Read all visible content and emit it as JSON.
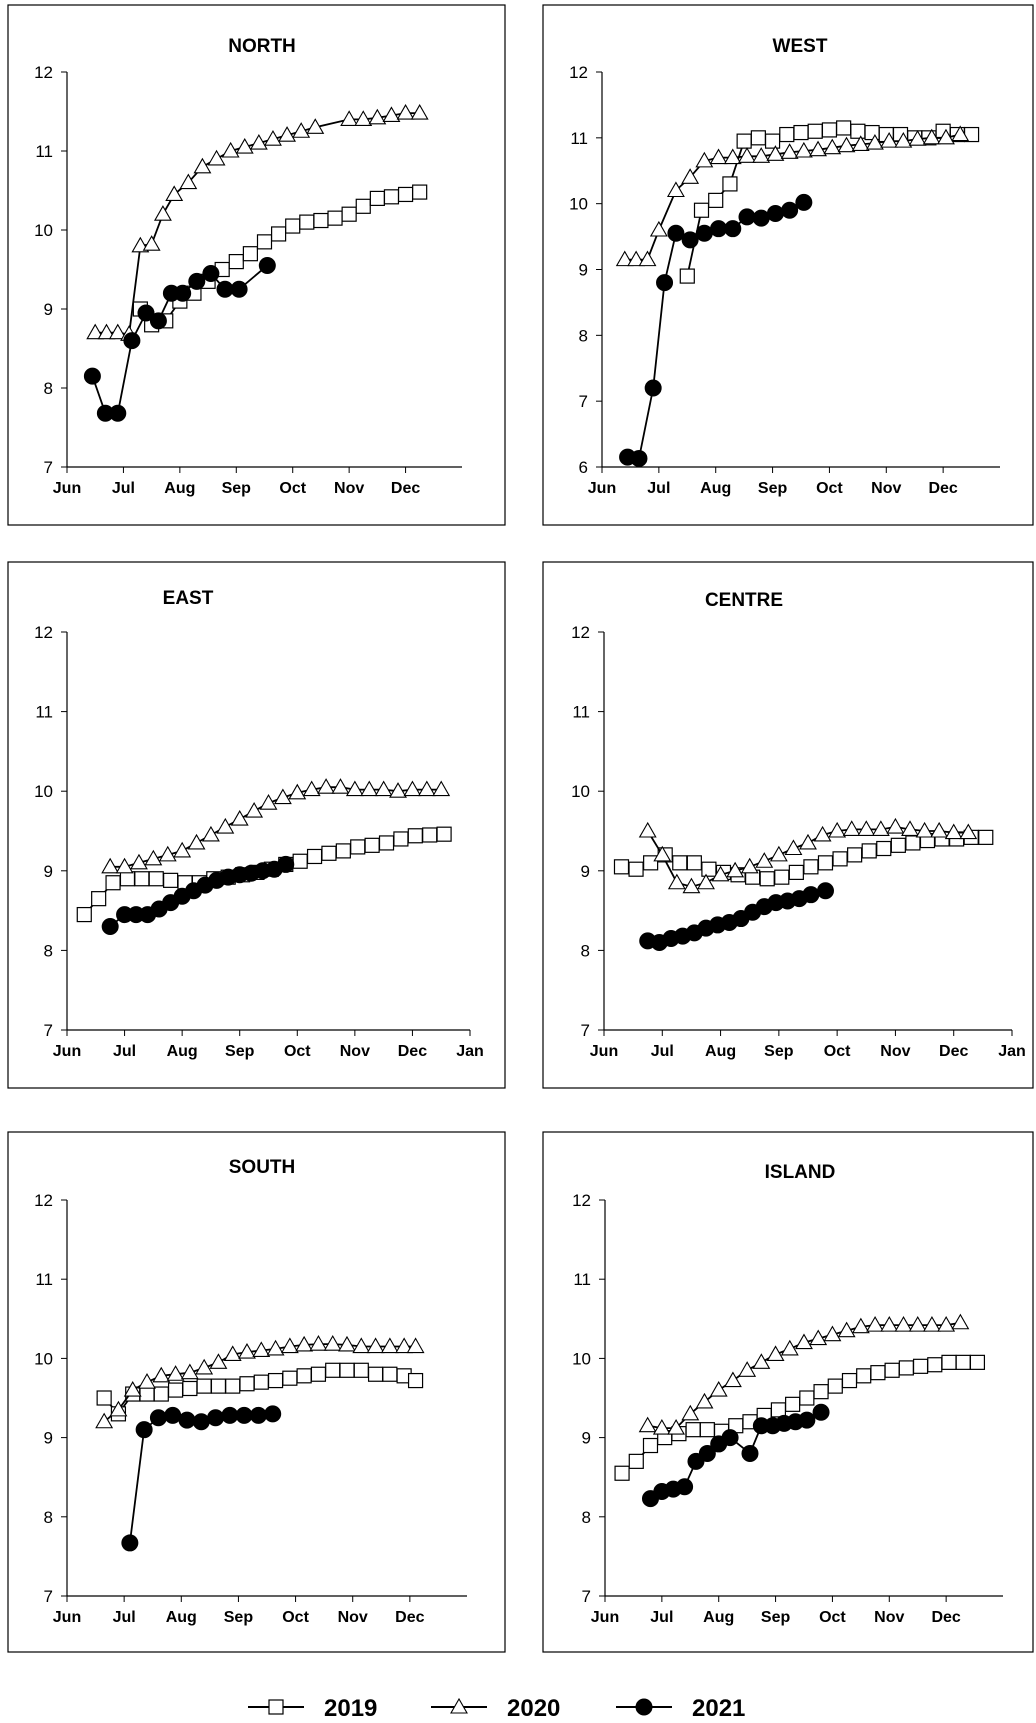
{
  "legend": {
    "entries": [
      {
        "label": "2019",
        "marker": "square-open"
      },
      {
        "label": "2020",
        "marker": "triangle-open"
      },
      {
        "label": "2021",
        "marker": "circle-filled"
      }
    ]
  },
  "chart_data": [
    {
      "type": "line",
      "title": "NORTH",
      "xticks": [
        "Jun",
        "Jul",
        "Aug",
        "Sep",
        "Oct",
        "Nov",
        "Dec"
      ],
      "xlim": [
        0,
        7
      ],
      "ylim": [
        7,
        12
      ],
      "yticks": [
        7,
        8,
        9,
        10,
        11,
        12
      ],
      "series": [
        {
          "name": "2019",
          "marker": "square-open",
          "x": [
            1.3,
            1.5,
            1.75,
            2,
            2.25,
            2.5,
            2.75,
            3,
            3.25,
            3.5,
            3.75,
            4,
            4.25,
            4.5,
            4.75,
            5,
            5.25,
            5.5,
            5.75,
            6,
            6.25
          ],
          "y": [
            9.0,
            8.8,
            8.85,
            9.1,
            9.2,
            9.35,
            9.5,
            9.6,
            9.7,
            9.85,
            9.95,
            10.05,
            10.1,
            10.12,
            10.15,
            10.2,
            10.3,
            10.4,
            10.42,
            10.45,
            10.48
          ]
        },
        {
          "name": "2020",
          "marker": "triangle-open",
          "x": [
            0.5,
            0.7,
            0.9,
            1.1,
            1.3,
            1.5,
            1.7,
            1.9,
            2.15,
            2.4,
            2.65,
            2.9,
            3.15,
            3.4,
            3.65,
            3.9,
            4.15,
            4.4,
            5.0,
            5.25,
            5.5,
            5.75,
            6.0,
            6.25
          ],
          "y": [
            8.7,
            8.7,
            8.7,
            8.68,
            9.8,
            9.82,
            10.2,
            10.45,
            10.6,
            10.8,
            10.9,
            11.0,
            11.05,
            11.1,
            11.15,
            11.2,
            11.25,
            11.3,
            11.4,
            11.4,
            11.42,
            11.45,
            11.48,
            11.48
          ]
        },
        {
          "name": "2021",
          "marker": "circle-filled",
          "x": [
            0.45,
            0.68,
            0.9,
            1.15,
            1.4,
            1.62,
            1.85,
            2.05,
            2.3,
            2.55,
            2.8,
            3.05,
            3.55
          ],
          "y": [
            8.15,
            7.68,
            7.68,
            8.6,
            8.95,
            8.85,
            9.2,
            9.2,
            9.35,
            9.45,
            9.25,
            9.25,
            9.55
          ]
        }
      ]
    },
    {
      "type": "line",
      "title": "WEST",
      "xticks": [
        "Jun",
        "Jul",
        "Aug",
        "Sep",
        "Oct",
        "Nov",
        "Dec"
      ],
      "xlim": [
        0,
        7
      ],
      "ylim": [
        6,
        12
      ],
      "yticks": [
        6,
        7,
        8,
        9,
        10,
        11,
        12
      ],
      "series": [
        {
          "name": "2019",
          "marker": "square-open",
          "x": [
            1.5,
            1.75,
            2,
            2.25,
            2.5,
            2.75,
            3,
            3.25,
            3.5,
            3.75,
            4,
            4.25,
            4.5,
            4.75,
            5,
            5.25,
            5.5,
            5.75,
            6,
            6.25,
            6.5
          ],
          "y": [
            8.9,
            9.9,
            10.05,
            10.3,
            10.95,
            11.0,
            10.95,
            11.05,
            11.08,
            11.1,
            11.12,
            11.15,
            11.1,
            11.08,
            11.05,
            11.05,
            11.0,
            11.0,
            11.1,
            11.05,
            11.05
          ]
        },
        {
          "name": "2020",
          "marker": "triangle-open",
          "x": [
            0.4,
            0.6,
            0.8,
            1.0,
            1.3,
            1.55,
            1.8,
            2.05,
            2.3,
            2.55,
            2.8,
            3.05,
            3.3,
            3.55,
            3.8,
            4.05,
            4.3,
            4.55,
            4.8,
            5.05,
            5.3,
            5.55,
            5.8,
            6.05,
            6.3
          ],
          "y": [
            9.15,
            9.15,
            9.15,
            9.6,
            10.2,
            10.4,
            10.65,
            10.7,
            10.7,
            10.72,
            10.72,
            10.75,
            10.78,
            10.8,
            10.82,
            10.85,
            10.88,
            10.9,
            10.92,
            10.95,
            10.95,
            10.98,
            11.0,
            11.0,
            11.05
          ]
        },
        {
          "name": "2021",
          "marker": "circle-filled",
          "x": [
            0.45,
            0.65,
            0.9,
            1.1,
            1.3,
            1.55,
            1.8,
            2.05,
            2.3,
            2.55,
            2.8,
            3.05,
            3.3,
            3.55
          ],
          "y": [
            6.15,
            6.13,
            7.2,
            8.8,
            9.55,
            9.45,
            9.55,
            9.62,
            9.62,
            9.8,
            9.78,
            9.85,
            9.9,
            10.02
          ]
        }
      ]
    },
    {
      "type": "line",
      "title": "EAST",
      "xticks": [
        "Jun",
        "Jul",
        "Aug",
        "Sep",
        "Oct",
        "Nov",
        "Dec",
        "Jan"
      ],
      "xlim": [
        0,
        7
      ],
      "ylim": [
        7,
        12
      ],
      "yticks": [
        7,
        8,
        9,
        10,
        11,
        12
      ],
      "series": [
        {
          "name": "2019",
          "marker": "square-open",
          "x": [
            0.3,
            0.55,
            0.8,
            1.05,
            1.3,
            1.55,
            1.8,
            2.05,
            2.3,
            2.55,
            2.8,
            3.05,
            3.3,
            3.55,
            3.8,
            4.05,
            4.3,
            4.55,
            4.8,
            5.05,
            5.3,
            5.55,
            5.8,
            6.05,
            6.3,
            6.55
          ],
          "y": [
            8.45,
            8.65,
            8.85,
            8.9,
            8.9,
            8.9,
            8.88,
            8.85,
            8.85,
            8.9,
            8.92,
            8.95,
            8.98,
            9.02,
            9.08,
            9.12,
            9.18,
            9.22,
            9.25,
            9.3,
            9.32,
            9.35,
            9.4,
            9.44,
            9.45,
            9.46
          ]
        },
        {
          "name": "2020",
          "marker": "triangle-open",
          "x": [
            0.75,
            1.0,
            1.25,
            1.5,
            1.75,
            2.0,
            2.25,
            2.5,
            2.75,
            3.0,
            3.25,
            3.5,
            3.75,
            4.0,
            4.25,
            4.5,
            4.75,
            5.0,
            5.25,
            5.5,
            5.75,
            6.0,
            6.25,
            6.5
          ],
          "y": [
            9.05,
            9.05,
            9.1,
            9.15,
            9.2,
            9.25,
            9.35,
            9.45,
            9.55,
            9.65,
            9.75,
            9.85,
            9.92,
            9.98,
            10.02,
            10.05,
            10.05,
            10.02,
            10.02,
            10.02,
            10.0,
            10.02,
            10.02,
            10.02
          ]
        },
        {
          "name": "2021",
          "marker": "circle-filled",
          "x": [
            0.75,
            1.0,
            1.2,
            1.4,
            1.6,
            1.8,
            2.0,
            2.2,
            2.4,
            2.6,
            2.8,
            3.0,
            3.2,
            3.4,
            3.6,
            3.8
          ],
          "y": [
            8.3,
            8.45,
            8.45,
            8.45,
            8.52,
            8.6,
            8.68,
            8.75,
            8.82,
            8.88,
            8.92,
            8.95,
            8.97,
            9.0,
            9.02,
            9.08
          ]
        }
      ]
    },
    {
      "type": "line",
      "title": "CENTRE",
      "xticks": [
        "Jun",
        "Jul",
        "Aug",
        "Sep",
        "Oct",
        "Nov",
        "Dec",
        "Jan"
      ],
      "xlim": [
        0,
        7
      ],
      "ylim": [
        7,
        12
      ],
      "yticks": [
        7,
        8,
        9,
        10,
        11,
        12
      ],
      "series": [
        {
          "name": "2019",
          "marker": "square-open",
          "x": [
            0.3,
            0.55,
            0.8,
            1.05,
            1.3,
            1.55,
            1.8,
            2.05,
            2.3,
            2.55,
            2.8,
            3.05,
            3.3,
            3.55,
            3.8,
            4.05,
            4.3,
            4.55,
            4.8,
            5.05,
            5.3,
            5.55,
            5.8,
            6.05,
            6.3,
            6.55
          ],
          "y": [
            9.05,
            9.02,
            9.1,
            9.2,
            9.1,
            9.1,
            9.02,
            8.98,
            8.95,
            8.92,
            8.9,
            8.92,
            8.98,
            9.05,
            9.1,
            9.15,
            9.2,
            9.25,
            9.28,
            9.32,
            9.35,
            9.38,
            9.4,
            9.4,
            9.42,
            9.42
          ]
        },
        {
          "name": "2020",
          "marker": "triangle-open",
          "x": [
            0.75,
            1.0,
            1.25,
            1.5,
            1.75,
            2.0,
            2.25,
            2.5,
            2.75,
            3.0,
            3.25,
            3.5,
            3.75,
            4.0,
            4.25,
            4.5,
            4.75,
            5.0,
            5.25,
            5.5,
            5.75,
            6.0,
            6.25
          ],
          "y": [
            9.5,
            9.2,
            8.85,
            8.8,
            8.85,
            8.95,
            9.0,
            9.05,
            9.12,
            9.2,
            9.28,
            9.35,
            9.45,
            9.5,
            9.52,
            9.52,
            9.52,
            9.55,
            9.52,
            9.5,
            9.5,
            9.48,
            9.48
          ]
        },
        {
          "name": "2021",
          "marker": "circle-filled",
          "x": [
            0.75,
            0.95,
            1.15,
            1.35,
            1.55,
            1.75,
            1.95,
            2.15,
            2.35,
            2.55,
            2.75,
            2.95,
            3.15,
            3.35,
            3.55,
            3.8
          ],
          "y": [
            8.12,
            8.1,
            8.15,
            8.18,
            8.22,
            8.28,
            8.32,
            8.35,
            8.4,
            8.48,
            8.55,
            8.6,
            8.62,
            8.65,
            8.7,
            8.75
          ]
        }
      ]
    },
    {
      "type": "line",
      "title": "SOUTH",
      "xticks": [
        "Jun",
        "Jul",
        "Aug",
        "Sep",
        "Oct",
        "Nov",
        "Dec"
      ],
      "xlim": [
        0,
        7
      ],
      "ylim": [
        7,
        12
      ],
      "yticks": [
        7,
        8,
        9,
        10,
        11,
        12
      ],
      "series": [
        {
          "name": "2019",
          "marker": "square-open",
          "x": [
            0.65,
            0.9,
            1.15,
            1.4,
            1.65,
            1.9,
            2.15,
            2.4,
            2.65,
            2.9,
            3.15,
            3.4,
            3.65,
            3.9,
            4.15,
            4.4,
            4.65,
            4.9,
            5.15,
            5.4,
            5.65,
            5.9,
            6.1
          ],
          "y": [
            9.5,
            9.3,
            9.55,
            9.55,
            9.55,
            9.6,
            9.62,
            9.65,
            9.65,
            9.65,
            9.68,
            9.7,
            9.72,
            9.75,
            9.78,
            9.8,
            9.85,
            9.85,
            9.85,
            9.8,
            9.8,
            9.78,
            9.72
          ]
        },
        {
          "name": "2020",
          "marker": "triangle-open",
          "x": [
            0.65,
            0.9,
            1.15,
            1.4,
            1.65,
            1.9,
            2.15,
            2.4,
            2.65,
            2.9,
            3.15,
            3.4,
            3.65,
            3.9,
            4.15,
            4.4,
            4.65,
            4.9,
            5.15,
            5.4,
            5.65,
            5.9,
            6.1
          ],
          "y": [
            9.2,
            9.35,
            9.6,
            9.7,
            9.78,
            9.8,
            9.82,
            9.88,
            9.95,
            10.05,
            10.08,
            10.1,
            10.12,
            10.15,
            10.17,
            10.18,
            10.18,
            10.17,
            10.15,
            10.15,
            10.15,
            10.15,
            10.15
          ]
        },
        {
          "name": "2021",
          "marker": "circle-filled",
          "x": [
            1.1,
            1.35,
            1.6,
            1.85,
            2.1,
            2.35,
            2.6,
            2.85,
            3.1,
            3.35,
            3.6
          ],
          "y": [
            7.67,
            9.1,
            9.25,
            9.28,
            9.22,
            9.2,
            9.25,
            9.28,
            9.28,
            9.28,
            9.3
          ]
        }
      ]
    },
    {
      "type": "line",
      "title": "ISLAND",
      "xticks": [
        "Jun",
        "Jul",
        "Aug",
        "Sep",
        "Oct",
        "Nov",
        "Dec"
      ],
      "xlim": [
        0,
        7
      ],
      "ylim": [
        7,
        12
      ],
      "yticks": [
        7,
        8,
        9,
        10,
        11,
        12
      ],
      "series": [
        {
          "name": "2019",
          "marker": "square-open",
          "x": [
            0.3,
            0.55,
            0.8,
            1.05,
            1.3,
            1.55,
            1.8,
            2.05,
            2.3,
            2.55,
            2.8,
            3.05,
            3.3,
            3.55,
            3.8,
            4.05,
            4.3,
            4.55,
            4.8,
            5.05,
            5.3,
            5.55,
            5.8,
            6.05,
            6.3,
            6.55
          ],
          "y": [
            8.55,
            8.7,
            8.9,
            9.0,
            9.05,
            9.1,
            9.1,
            9.08,
            9.15,
            9.2,
            9.28,
            9.35,
            9.42,
            9.5,
            9.58,
            9.65,
            9.72,
            9.78,
            9.82,
            9.85,
            9.88,
            9.9,
            9.92,
            9.95,
            9.95,
            9.95
          ]
        },
        {
          "name": "2020",
          "marker": "triangle-open",
          "x": [
            0.75,
            1.0,
            1.25,
            1.5,
            1.75,
            2.0,
            2.25,
            2.5,
            2.75,
            3.0,
            3.25,
            3.5,
            3.75,
            4.0,
            4.25,
            4.5,
            4.75,
            5.0,
            5.25,
            5.5,
            5.75,
            6.0,
            6.25
          ],
          "y": [
            9.15,
            9.12,
            9.12,
            9.3,
            9.45,
            9.6,
            9.72,
            9.85,
            9.95,
            10.05,
            10.12,
            10.2,
            10.25,
            10.3,
            10.35,
            10.4,
            10.42,
            10.42,
            10.42,
            10.42,
            10.42,
            10.42,
            10.45
          ]
        },
        {
          "name": "2021",
          "marker": "circle-filled",
          "x": [
            0.8,
            1.0,
            1.2,
            1.4,
            1.6,
            1.8,
            2.0,
            2.2,
            2.55,
            2.75,
            2.95,
            3.15,
            3.35,
            3.55,
            3.8
          ],
          "y": [
            8.23,
            8.32,
            8.35,
            8.38,
            8.7,
            8.8,
            8.92,
            9.0,
            8.8,
            9.15,
            9.15,
            9.18,
            9.2,
            9.22,
            9.32
          ]
        }
      ]
    }
  ]
}
